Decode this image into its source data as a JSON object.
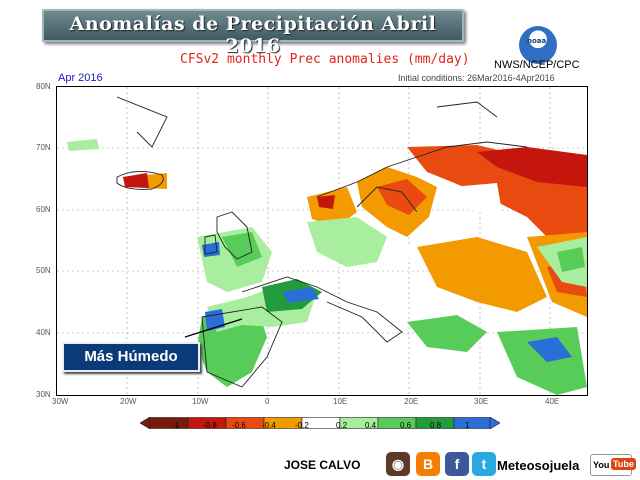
{
  "header": {
    "title": "Anomalías de Precipitación Abril 2016",
    "subtitle": "CFSv2 monthly Prec anomalies (mm/day)",
    "agency": "NWS/NCEP/CPC",
    "logo_text": "noaa",
    "month": "Apr 2016",
    "initial_conditions": "Initial conditions: 26Mar2016-4Apr2016"
  },
  "map": {
    "lat_labels": [
      "80N",
      "70N",
      "60N",
      "50N",
      "40N",
      "30N"
    ],
    "lon_labels": [
      "30W",
      "20W",
      "10W",
      "0",
      "10E",
      "20E",
      "30E",
      "40E"
    ],
    "callout": "Más Húmedo"
  },
  "legend": {
    "labels": [
      "-1",
      "-0.8",
      "-0.6",
      "-0.4",
      "-0.2",
      "0.2",
      "0.4",
      "0.6",
      "0.8",
      "1"
    ],
    "colors": [
      "#7a1a0c",
      "#c4160c",
      "#e84a10",
      "#f39a00",
      "#ffffff",
      "#a8ee9e",
      "#58cc58",
      "#229c3a",
      "#2a6fd8"
    ]
  },
  "footer": {
    "author": "JOSE CALVO",
    "icons": [
      {
        "name": "instagram-icon",
        "glyph": "◉",
        "color": "#5b3a29"
      },
      {
        "name": "blogger-icon",
        "glyph": "B",
        "color": "#f57d00"
      },
      {
        "name": "facebook-icon",
        "glyph": "f",
        "color": "#3b5998"
      },
      {
        "name": "twitter-icon",
        "glyph": "t",
        "color": "#2aa9e0"
      }
    ],
    "brand": "Meteosojuela",
    "youtube_you": "You",
    "youtube_tube": "Tube"
  }
}
